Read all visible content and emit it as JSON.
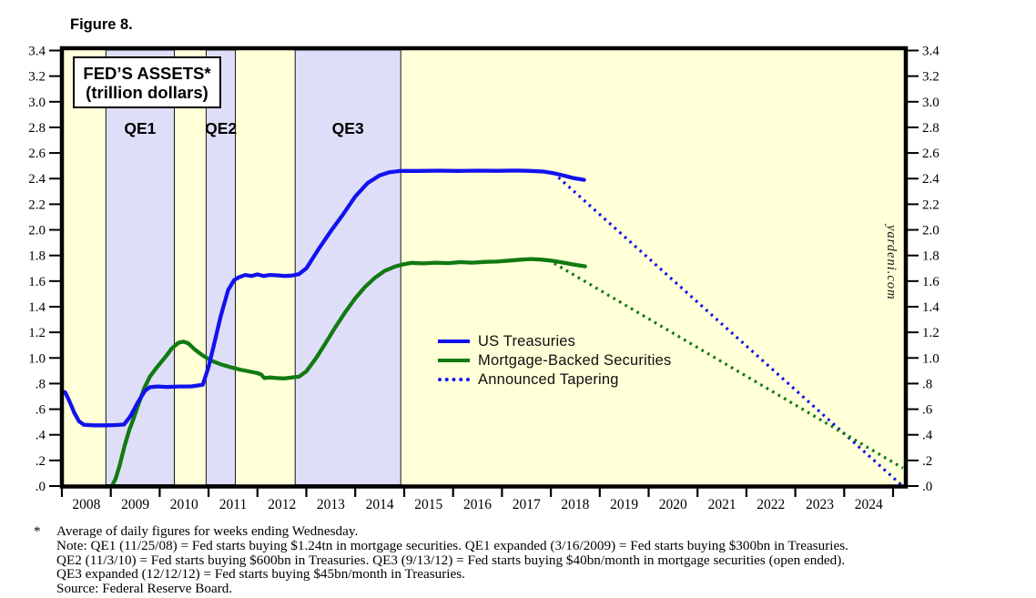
{
  "figure_label": "Figure 8.",
  "title_box": {
    "line1": "FED’S ASSETS*",
    "line2": "(trillion dollars)"
  },
  "watermark": "yardeni.com",
  "legend": [
    {
      "label": "US Treasuries",
      "style": "solid",
      "color": "#1212ee"
    },
    {
      "label": "Mortgage-Backed Securities",
      "style": "solid",
      "color": "#117a11"
    },
    {
      "label": "Announced Tapering",
      "style": "dotted",
      "color": "#1212ee"
    }
  ],
  "footnote": {
    "marker": "*",
    "lines": [
      "Average of daily figures for weeks ending Wednesday.",
      "Note: QE1 (11/25/08) = Fed starts buying $1.24tn in mortgage securities. QE1 expanded (3/16/2009) = Fed starts buying $300bn in Treasuries.",
      "QE2 (11/3/10) = Fed starts buying $600bn in Treasuries. QE3 (9/13/12) = Fed starts buying $40bn/month in mortgage securities (open ended).",
      "QE3 expanded (12/12/12) = Fed starts buying $45bn/month in Treasuries.",
      "Source: Federal Reserve Board."
    ]
  },
  "chart_data": {
    "type": "line",
    "title": "FED'S ASSETS* (trillion dollars)",
    "xlabel": "",
    "ylabel": "trillion dollars",
    "x_axis": {
      "min": 2008.0,
      "max": 2025.26,
      "tick_years_start": 2008,
      "tick_years_end": 2025,
      "year_labels": [
        "2008",
        "2009",
        "2010",
        "2011",
        "2012",
        "2013",
        "2014",
        "2015",
        "2016",
        "2017",
        "2018",
        "2019",
        "2020",
        "2021",
        "2022",
        "2023",
        "2024"
      ]
    },
    "y_axis": {
      "min": 0.0,
      "max": 3.4,
      "tick_step": 0.2,
      "labels_both_sides": true
    },
    "grid": false,
    "legend_position": "center-right",
    "colors": {
      "plot_bg": "#ffffd8",
      "band_fill": "#dedef8",
      "band_edge": "#000000",
      "axis": "#000000",
      "treasuries": "#1212ee",
      "mbs": "#117a11"
    },
    "bands": [
      {
        "label": "QE1",
        "start": 2008.9,
        "end": 2010.3
      },
      {
        "label": "QE2",
        "start": 2010.95,
        "end": 2011.55
      },
      {
        "label": "QE3",
        "start": 2012.77,
        "end": 2014.93
      }
    ],
    "series": [
      {
        "name": "Announced Tapering (US Treasuries)",
        "style": "dotted",
        "color": "#1212ee",
        "points": [
          [
            2018.05,
            2.445
          ],
          [
            2025.18,
            0.005
          ]
        ]
      },
      {
        "name": "Announced Tapering (Mortgage-Backed Securities)",
        "style": "dotted",
        "color": "#117a11",
        "points": [
          [
            2017.95,
            1.765
          ],
          [
            2025.2,
            0.14
          ]
        ]
      },
      {
        "name": "Mortgage-Backed Securities",
        "style": "solid",
        "color": "#117a11",
        "points": [
          [
            2009.03,
            0.005
          ],
          [
            2009.1,
            0.06
          ],
          [
            2009.18,
            0.16
          ],
          [
            2009.28,
            0.31
          ],
          [
            2009.38,
            0.44
          ],
          [
            2009.45,
            0.51
          ],
          [
            2009.55,
            0.62
          ],
          [
            2009.68,
            0.76
          ],
          [
            2009.8,
            0.855
          ],
          [
            2009.95,
            0.93
          ],
          [
            2010.1,
            1.0
          ],
          [
            2010.25,
            1.075
          ],
          [
            2010.38,
            1.118
          ],
          [
            2010.48,
            1.128
          ],
          [
            2010.58,
            1.115
          ],
          [
            2010.72,
            1.065
          ],
          [
            2010.88,
            1.02
          ],
          [
            2011.05,
            0.98
          ],
          [
            2011.25,
            0.95
          ],
          [
            2011.45,
            0.928
          ],
          [
            2011.65,
            0.908
          ],
          [
            2011.85,
            0.893
          ],
          [
            2012.0,
            0.882
          ],
          [
            2012.08,
            0.87
          ],
          [
            2012.14,
            0.843
          ],
          [
            2012.25,
            0.848
          ],
          [
            2012.4,
            0.843
          ],
          [
            2012.55,
            0.84
          ],
          [
            2012.7,
            0.847
          ],
          [
            2012.85,
            0.855
          ],
          [
            2013.0,
            0.895
          ],
          [
            2013.2,
            1.0
          ],
          [
            2013.4,
            1.12
          ],
          [
            2013.6,
            1.245
          ],
          [
            2013.8,
            1.36
          ],
          [
            2014.0,
            1.465
          ],
          [
            2014.2,
            1.555
          ],
          [
            2014.4,
            1.625
          ],
          [
            2014.6,
            1.68
          ],
          [
            2014.8,
            1.712
          ],
          [
            2014.95,
            1.728
          ],
          [
            2015.15,
            1.742
          ],
          [
            2015.4,
            1.738
          ],
          [
            2015.65,
            1.744
          ],
          [
            2015.9,
            1.74
          ],
          [
            2016.15,
            1.748
          ],
          [
            2016.4,
            1.744
          ],
          [
            2016.65,
            1.75
          ],
          [
            2016.9,
            1.752
          ],
          [
            2017.15,
            1.76
          ],
          [
            2017.4,
            1.768
          ],
          [
            2017.6,
            1.772
          ],
          [
            2017.8,
            1.768
          ],
          [
            2018.0,
            1.76
          ],
          [
            2018.2,
            1.748
          ],
          [
            2018.45,
            1.73
          ],
          [
            2018.7,
            1.715
          ]
        ]
      },
      {
        "name": "US Treasuries",
        "style": "solid",
        "color": "#1212ee",
        "points": [
          [
            2008.0,
            0.74
          ],
          [
            2008.07,
            0.73
          ],
          [
            2008.15,
            0.665
          ],
          [
            2008.25,
            0.575
          ],
          [
            2008.35,
            0.505
          ],
          [
            2008.45,
            0.478
          ],
          [
            2008.65,
            0.474
          ],
          [
            2008.9,
            0.474
          ],
          [
            2009.1,
            0.476
          ],
          [
            2009.27,
            0.48
          ],
          [
            2009.4,
            0.545
          ],
          [
            2009.55,
            0.65
          ],
          [
            2009.7,
            0.745
          ],
          [
            2009.8,
            0.772
          ],
          [
            2009.95,
            0.777
          ],
          [
            2010.15,
            0.774
          ],
          [
            2010.4,
            0.777
          ],
          [
            2010.65,
            0.778
          ],
          [
            2010.88,
            0.79
          ],
          [
            2011.0,
            0.93
          ],
          [
            2011.12,
            1.12
          ],
          [
            2011.25,
            1.33
          ],
          [
            2011.4,
            1.53
          ],
          [
            2011.52,
            1.607
          ],
          [
            2011.62,
            1.63
          ],
          [
            2011.75,
            1.648
          ],
          [
            2011.88,
            1.64
          ],
          [
            2012.0,
            1.653
          ],
          [
            2012.12,
            1.64
          ],
          [
            2012.25,
            1.648
          ],
          [
            2012.4,
            1.645
          ],
          [
            2012.55,
            1.64
          ],
          [
            2012.7,
            1.643
          ],
          [
            2012.85,
            1.655
          ],
          [
            2013.0,
            1.7
          ],
          [
            2013.25,
            1.85
          ],
          [
            2013.5,
            1.99
          ],
          [
            2013.75,
            2.12
          ],
          [
            2014.0,
            2.26
          ],
          [
            2014.25,
            2.365
          ],
          [
            2014.5,
            2.425
          ],
          [
            2014.7,
            2.45
          ],
          [
            2014.93,
            2.46
          ],
          [
            2015.3,
            2.46
          ],
          [
            2015.7,
            2.462
          ],
          [
            2016.1,
            2.46
          ],
          [
            2016.5,
            2.462
          ],
          [
            2016.9,
            2.461
          ],
          [
            2017.3,
            2.463
          ],
          [
            2017.6,
            2.46
          ],
          [
            2017.85,
            2.455
          ],
          [
            2018.05,
            2.443
          ],
          [
            2018.25,
            2.425
          ],
          [
            2018.45,
            2.405
          ],
          [
            2018.68,
            2.39
          ]
        ]
      }
    ]
  }
}
